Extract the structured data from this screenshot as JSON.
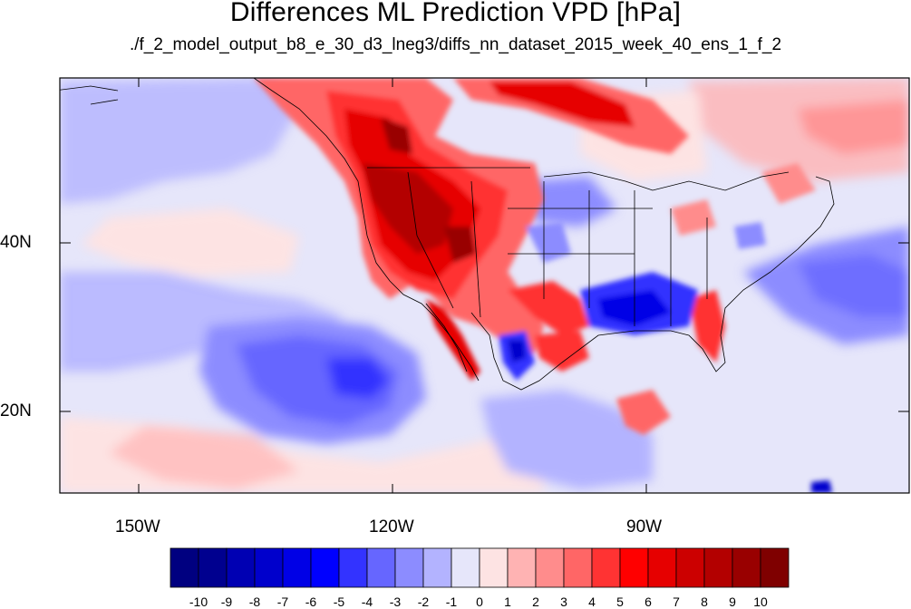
{
  "title": "Differences ML Prediction VPD [hPa]",
  "subtitle": "./f_2_model_output_b8_e_30_d3_lneg3/diffs_nn_dataset_2015_week_40_ens_1_f_2",
  "map": {
    "lat_labels": [
      "40N",
      "20N"
    ],
    "lon_labels": [
      "150W",
      "120W",
      "90W"
    ]
  },
  "colorbar": {
    "labels": [
      "-10",
      "-9",
      "-8",
      "-7",
      "-6",
      "-5",
      "-4",
      "-3",
      "-2",
      "-1",
      "0",
      "1",
      "2",
      "3",
      "4",
      "5",
      "6",
      "7",
      "8",
      "9",
      "10"
    ],
    "colors": [
      "#000080",
      "#00008f",
      "#0000b3",
      "#0000cc",
      "#0000e6",
      "#0000ff",
      "#3333ff",
      "#6666ff",
      "#8c8cff",
      "#b3b3ff",
      "#e6e6fa",
      "#fde3e3",
      "#ffb3b3",
      "#ff8c8c",
      "#ff6666",
      "#ff3333",
      "#ff0000",
      "#e60000",
      "#cc0000",
      "#b30000",
      "#990000",
      "#7f0000"
    ]
  }
}
